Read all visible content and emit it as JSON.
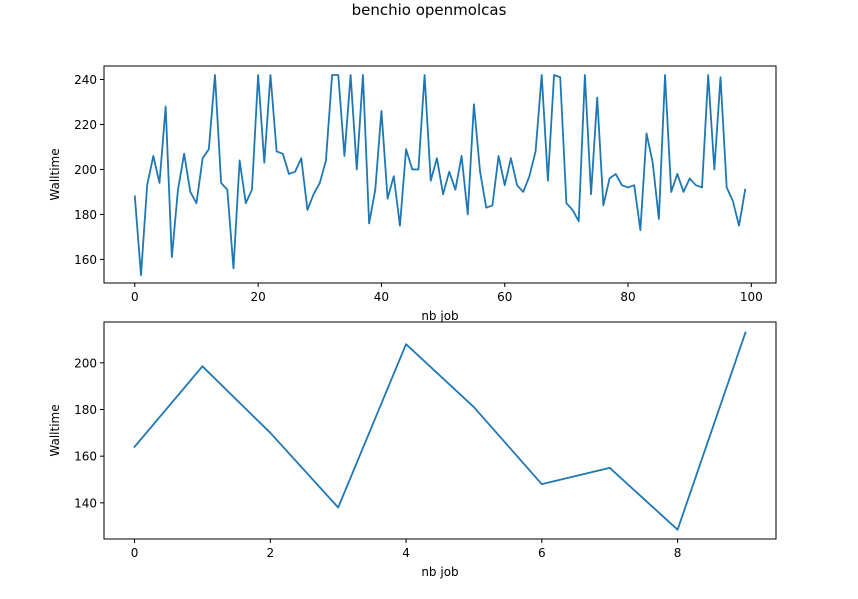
{
  "figure": {
    "suptitle": "benchio openmolcas"
  },
  "colors": {
    "series": "#1f77b4",
    "axes": "#000000",
    "background": "#ffffff"
  },
  "chart_data": [
    {
      "type": "line",
      "xlabel": "nb job",
      "ylabel": "Walltime",
      "grid": false,
      "xlim": [
        -5,
        104
      ],
      "ylim": [
        149.5,
        246
      ],
      "xticks": [
        0,
        20,
        40,
        60,
        80,
        100
      ],
      "yticks": [
        160,
        180,
        200,
        220,
        240
      ],
      "series": [
        {
          "x": [
            0,
            1,
            2,
            3,
            4,
            5,
            6,
            7,
            8,
            9,
            10,
            11,
            12,
            13,
            14,
            15,
            16,
            17,
            18,
            19,
            20,
            21,
            22,
            23,
            24,
            25,
            26,
            27,
            28,
            29,
            30,
            31,
            32,
            33,
            34,
            35,
            36,
            37,
            38,
            39,
            40,
            41,
            42,
            43,
            44,
            45,
            46,
            47,
            48,
            49,
            50,
            51,
            52,
            53,
            54,
            55,
            56,
            57,
            58,
            59,
            60,
            61,
            62,
            63,
            64,
            65,
            66,
            67,
            68,
            69,
            70,
            71,
            72,
            73,
            74,
            75,
            76,
            77,
            78,
            79,
            80,
            81,
            82,
            83,
            84,
            85,
            86,
            87,
            88,
            89,
            90,
            91,
            92,
            93,
            94,
            95,
            96,
            97,
            98,
            99
          ],
          "values": [
            188,
            153,
            193,
            206,
            194,
            228,
            161,
            191,
            207,
            190,
            185,
            205,
            209,
            242,
            194,
            191,
            156,
            204,
            185,
            191,
            242,
            203,
            242,
            208,
            207,
            198,
            199,
            205,
            182,
            189,
            194,
            204,
            242,
            242,
            206,
            242,
            200,
            242,
            176,
            191,
            226,
            187,
            197,
            175,
            209,
            200,
            200,
            242,
            195,
            205,
            189,
            199,
            191,
            206,
            180,
            229,
            199,
            183,
            184,
            206,
            193,
            205,
            193,
            190,
            197,
            208,
            242,
            195,
            242,
            241,
            185,
            182,
            177,
            242,
            189,
            232,
            184,
            196,
            198,
            193,
            192,
            193,
            173,
            216,
            203,
            178,
            242,
            190,
            198,
            190,
            196,
            193,
            192,
            242,
            200,
            241,
            192,
            186,
            175,
            191
          ]
        }
      ]
    },
    {
      "type": "line",
      "xlabel": "nb job",
      "ylabel": "Walltime",
      "grid": false,
      "xlim": [
        -0.45,
        9.45
      ],
      "ylim": [
        124.5,
        217.5
      ],
      "xticks": [
        0,
        2,
        4,
        6,
        8
      ],
      "yticks": [
        140,
        160,
        180,
        200
      ],
      "series": [
        {
          "x": [
            0,
            1,
            2,
            3,
            4,
            5,
            6,
            7,
            8,
            9
          ],
          "values": [
            164,
            198.5,
            170,
            138,
            208,
            181,
            148,
            155,
            128.5,
            213
          ]
        }
      ]
    }
  ]
}
